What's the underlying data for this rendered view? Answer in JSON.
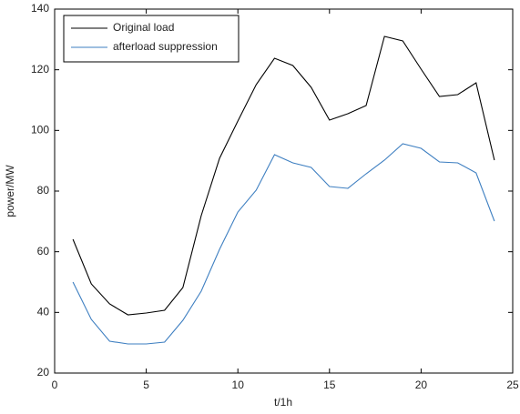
{
  "chart_data": {
    "type": "line",
    "x_label": "t/1h",
    "y_label": "power/MW",
    "x": [
      1,
      2,
      3,
      4,
      5,
      6,
      7,
      8,
      9,
      10,
      11,
      12,
      13,
      14,
      15,
      16,
      17,
      18,
      19,
      20,
      21,
      22,
      23,
      24
    ],
    "series": [
      {
        "name": "Original load",
        "color": "#000000",
        "values": [
          64.1,
          49.4,
          42.8,
          39.2,
          39.8,
          40.7,
          48.2,
          71.9,
          90.8,
          103.1,
          115.1,
          123.8,
          121.4,
          114.2,
          103.4,
          105.5,
          108.2,
          131,
          129.5,
          120.2,
          111.2,
          111.8,
          115.7,
          90.2
        ]
      },
      {
        "name": "afterload suppression",
        "color": "#3e7fc1",
        "values": [
          50,
          37.7,
          30.5,
          29.6,
          29.6,
          30.2,
          37.4,
          47,
          60.8,
          73.1,
          80.3,
          92,
          89.3,
          87.8,
          81.5,
          80.9,
          85.7,
          90.2,
          95.6,
          94.1,
          89.6,
          89.3,
          86,
          70.1
        ]
      }
    ],
    "xlim": [
      0,
      25
    ],
    "xticks": [
      0,
      5,
      10,
      15,
      20,
      25
    ],
    "ylim": [
      20,
      140
    ],
    "yticks": [
      20,
      40,
      60,
      80,
      100,
      120,
      140
    ],
    "legend": "upper left"
  }
}
